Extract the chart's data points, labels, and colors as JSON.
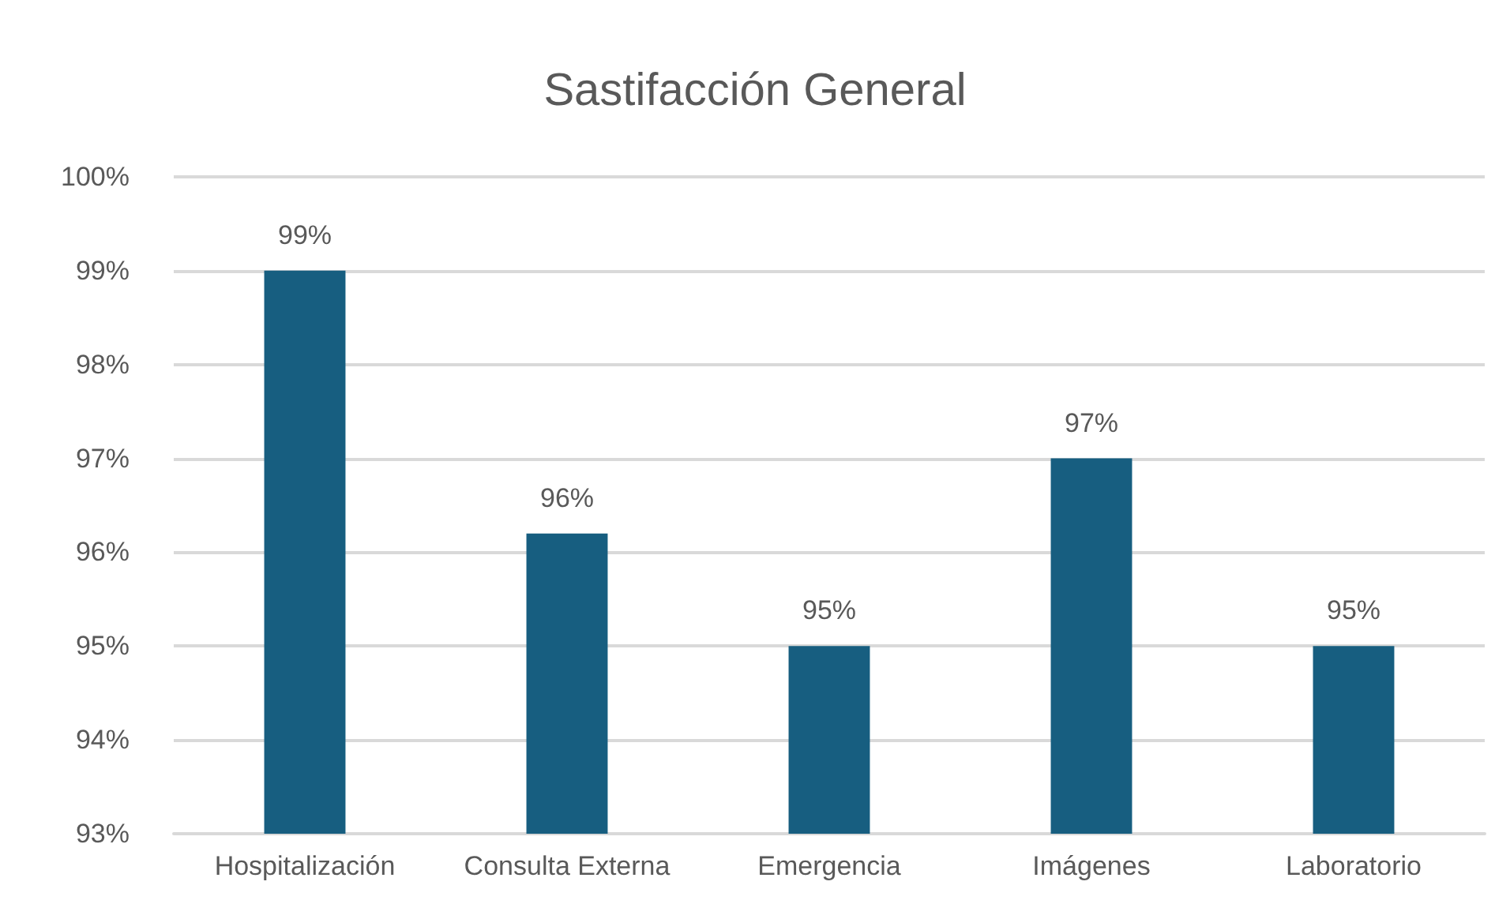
{
  "chart_data": {
    "type": "bar",
    "title": "Sastifacción General",
    "categories": [
      "Hospitalización",
      "Consulta Externa",
      "Emergencia",
      "Imágenes",
      "Laboratorio"
    ],
    "values": [
      99,
      96.2,
      95,
      97,
      95
    ],
    "value_labels": [
      "99%",
      "96%",
      "95%",
      "97%",
      "95%"
    ],
    "color": "#175e80",
    "ylim": [
      93,
      100
    ],
    "yticks": [
      {
        "value": 93,
        "label": "93%"
      },
      {
        "value": 94,
        "label": "94%"
      },
      {
        "value": 95,
        "label": "95%"
      },
      {
        "value": 96,
        "label": "96%"
      },
      {
        "value": 97,
        "label": "97%"
      },
      {
        "value": 98,
        "label": "98%"
      },
      {
        "value": 99,
        "label": "99%"
      },
      {
        "value": 100,
        "label": "100%"
      }
    ],
    "grid": true
  }
}
